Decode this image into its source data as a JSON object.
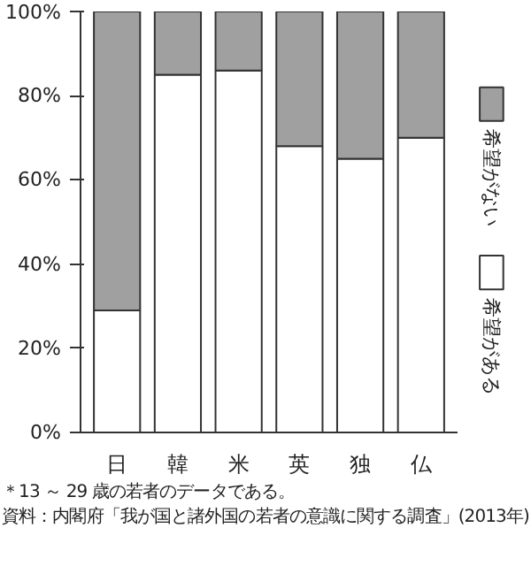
{
  "chart_data": {
    "type": "bar",
    "stacked": true,
    "categories": [
      "日",
      "韓",
      "米",
      "英",
      "独",
      "仏"
    ],
    "series": [
      {
        "name": "希望がある",
        "color": "#ffffff",
        "values": [
          29,
          85,
          86,
          68,
          65,
          70
        ]
      },
      {
        "name": "希望がない",
        "color": "#a0a0a0",
        "values": [
          71,
          15,
          14,
          32,
          35,
          30
        ]
      }
    ],
    "ylim": [
      0,
      100
    ],
    "yticks": [
      {
        "value": 0,
        "label": "0%"
      },
      {
        "value": 20,
        "label": "20%"
      },
      {
        "value": 40,
        "label": "40%"
      },
      {
        "value": 60,
        "label": "60%"
      },
      {
        "value": 80,
        "label": "80%"
      },
      {
        "value": 100,
        "label": "100%"
      }
    ],
    "grid": false,
    "legend": "right",
    "annotations": [
      "＊13 ～ 29 歳の若者のデータである。",
      "資料：内閣府「我が国と諸外国の若者の意識に関する調査」(2013年)"
    ]
  }
}
